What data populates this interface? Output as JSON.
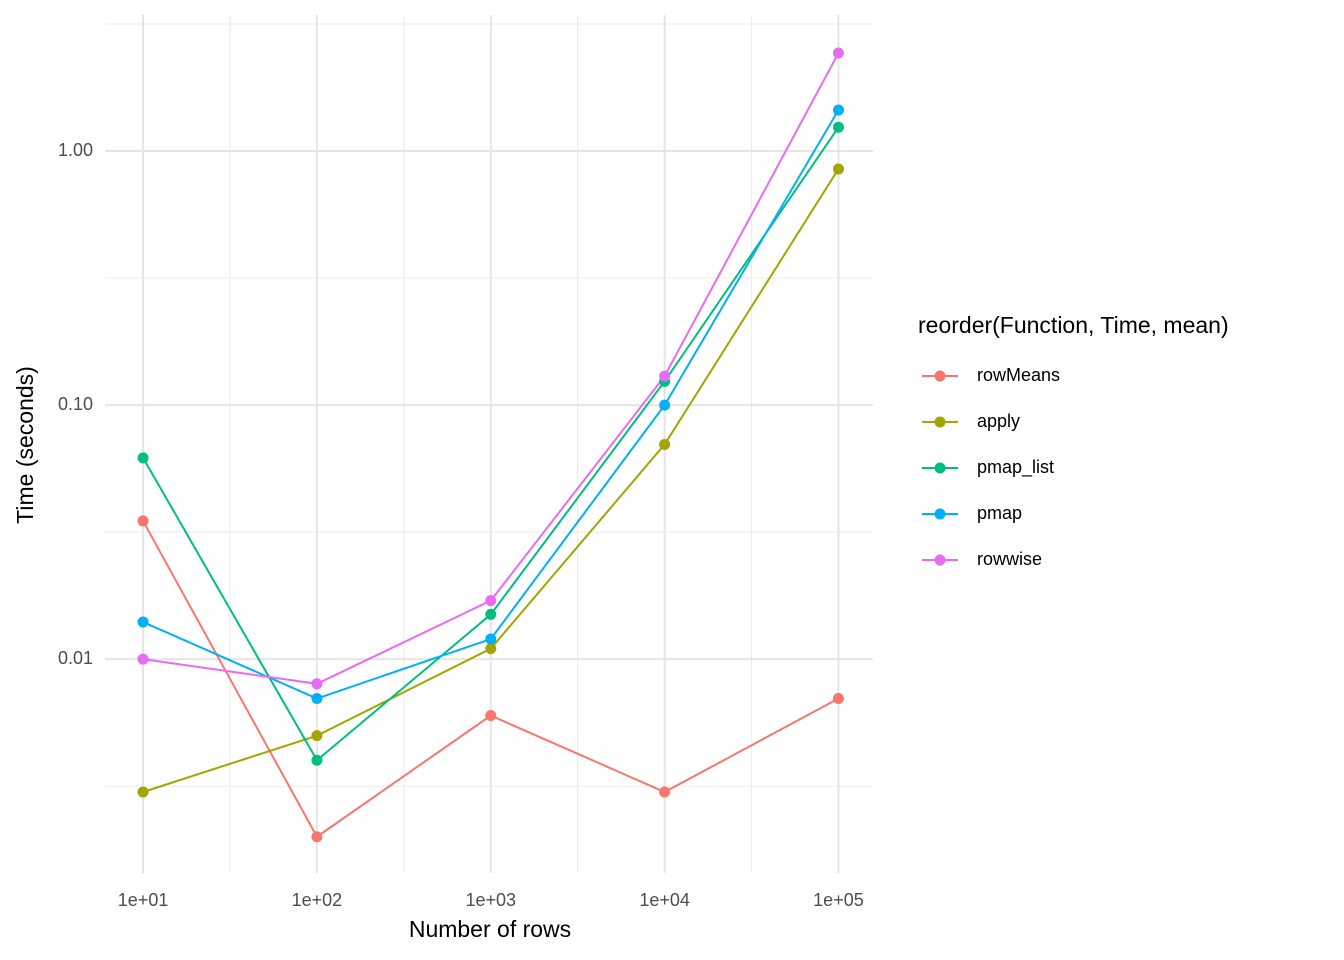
{
  "chart_data": {
    "type": "line",
    "x_label": "Number of rows",
    "y_label": "Time (seconds)",
    "legend_title": "reorder(Function, Time, mean)",
    "legend_position": "right",
    "xlog": true,
    "ylog": true,
    "grid": true,
    "x": [
      10,
      100,
      1000,
      10000,
      100000
    ],
    "xlim": [
      6.04,
      158000
    ],
    "xticks": [
      {
        "value": 10,
        "label": "1e+01"
      },
      {
        "value": 100,
        "label": "1e+02"
      },
      {
        "value": 1000,
        "label": "1e+03"
      },
      {
        "value": 10000,
        "label": "1e+04"
      },
      {
        "value": 100000,
        "label": "1e+05"
      }
    ],
    "ylim": [
      0.00144,
      3.43
    ],
    "yticks": [
      {
        "value": 0.01,
        "label": "0.01"
      },
      {
        "value": 0.1,
        "label": "0.10"
      },
      {
        "value": 1,
        "label": "1.00"
      }
    ],
    "series": [
      {
        "name": "rowMeans",
        "color": "#F8766D",
        "values": [
          0.035,
          0.002,
          0.006,
          0.003,
          0.007
        ]
      },
      {
        "name": "apply",
        "color": "#A3A500",
        "values": [
          0.003,
          0.005,
          0.011,
          0.07,
          0.85
        ]
      },
      {
        "name": "pmap_list",
        "color": "#00BF7D",
        "values": [
          0.062,
          0.004,
          0.015,
          0.124,
          1.24
        ]
      },
      {
        "name": "pmap",
        "color": "#00B0F6",
        "values": [
          0.014,
          0.007,
          0.012,
          0.1,
          1.45
        ]
      },
      {
        "name": "rowwise",
        "color": "#E76BF3",
        "values": [
          0.01,
          0.008,
          0.017,
          0.13,
          2.43
        ]
      }
    ]
  }
}
